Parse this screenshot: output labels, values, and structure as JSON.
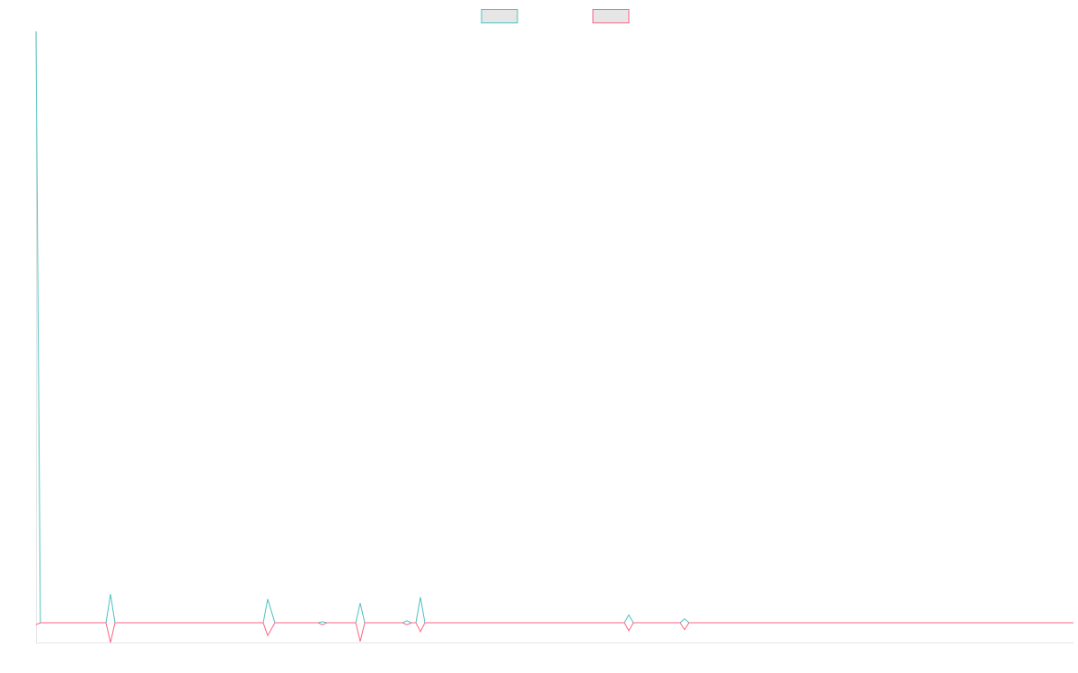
{
  "chart_data": {
    "type": "line",
    "x": [
      0,
      5,
      78,
      83,
      88,
      253,
      258,
      266,
      314,
      319,
      324,
      356,
      361,
      366,
      408,
      413,
      418,
      423,
      428,
      433,
      655,
      660,
      665,
      717,
      722,
      727,
      1155
    ],
    "series": [
      {
        "color": "#4bc0c0",
        "values": [
          30,
          0,
          0,
          1.45,
          0,
          0,
          1.2,
          0,
          0,
          0.05,
          0,
          0,
          1.0,
          0,
          0,
          0.1,
          0,
          0,
          1.3,
          0,
          0,
          0.4,
          0,
          0,
          0.2,
          0,
          0
        ]
      },
      {
        "color": "#ff6384",
        "values": [
          -0.1,
          0,
          0,
          -1,
          0,
          0,
          -0.65,
          0,
          0,
          -0.1,
          0,
          0,
          -0.95,
          0,
          0,
          -0.1,
          0,
          0,
          -0.45,
          0,
          0,
          -0.4,
          0,
          0,
          -0.35,
          0,
          0
        ]
      }
    ],
    "xlim": [
      0,
      1155
    ],
    "ylim": [
      -1,
      30
    ],
    "legend": "top"
  }
}
